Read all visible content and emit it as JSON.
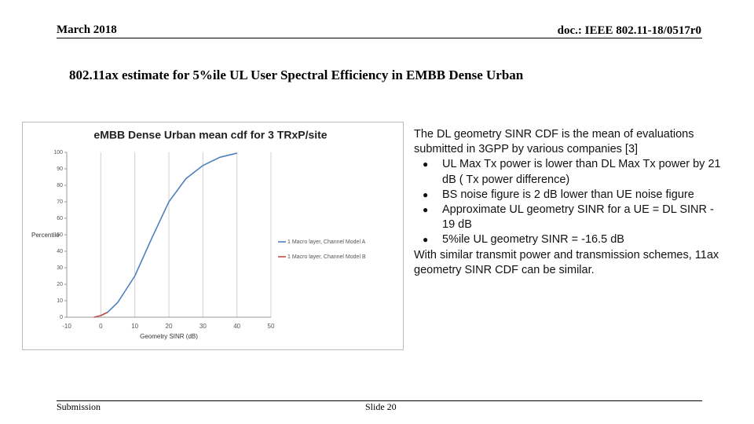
{
  "header": {
    "date": "March 2018",
    "doc": "doc.: IEEE 802.11-18/0517r0"
  },
  "title": "802.11ax estimate for 5%ile UL User Spectral Efficiency in EMBB Dense Urban",
  "body": {
    "intro": "The DL geometry SINR CDF is the mean of evaluations submitted in 3GPP by various companies  [3]",
    "bullets": [
      "UL Max Tx power is lower than DL Max Tx power by 21 dB ( Tx power difference)",
      "BS noise figure is 2 dB lower than UE noise figure",
      "Approximate UL geometry SINR for a UE = DL SINR - 19 dB",
      "5%ile UL geometry SINR = -16.5 dB"
    ],
    "closing": "With similar transmit power and transmission schemes, 11ax geometry SINR CDF can be similar."
  },
  "chart_data": {
    "type": "line",
    "title": "eMBB Dense Urban mean cdf for 3 TRxP/site",
    "x_label": "Geometry SINR (dB)",
    "y_label": "Percentile",
    "xlim": [
      -10,
      50
    ],
    "xticks": [
      -10,
      0,
      10,
      20,
      30,
      40,
      50
    ],
    "ylim": [
      0,
      100
    ],
    "yticks": [
      0,
      10,
      20,
      30,
      40,
      50,
      60,
      70,
      80,
      90,
      100
    ],
    "grid": true,
    "series": [
      {
        "name": "1 Macro layer, Channel Model A",
        "color": "#4f81bd",
        "x": [
          0,
          2,
          5,
          10,
          15,
          20,
          25,
          30,
          35,
          40
        ],
        "values": [
          1,
          3,
          9,
          25,
          48,
          70,
          84,
          92,
          97,
          99.5
        ]
      },
      {
        "name": "1 Macro layer, Channel Model B",
        "color": "#c0504d",
        "x": [
          -2,
          0,
          2
        ],
        "values": [
          0,
          1,
          3
        ]
      }
    ]
  },
  "footer": {
    "left": "Submission",
    "center": "Slide 20"
  }
}
